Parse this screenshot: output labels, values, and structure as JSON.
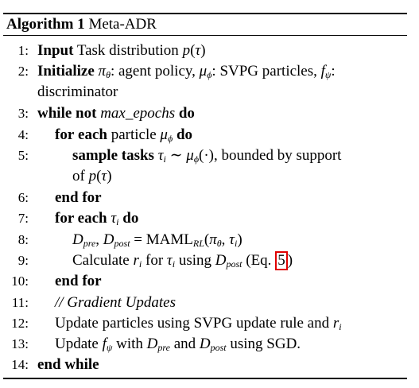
{
  "algorithm": {
    "title_label": "Algorithm 1",
    "title_name": "Meta-ADR",
    "lines": [
      {
        "num": "1:",
        "parts": [
          {
            "t": "Input",
            "s": "b"
          },
          {
            "t": " Task distribution "
          },
          {
            "t": "p",
            "s": "i"
          },
          {
            "t": "("
          },
          {
            "t": "τ",
            "s": "i"
          },
          {
            "t": ")"
          }
        ]
      },
      {
        "num": "2:",
        "parts": [
          {
            "t": "Initialize",
            "s": "b"
          },
          {
            "t": " "
          },
          {
            "t": "π",
            "s": "i"
          },
          {
            "t": "θ",
            "s": "sub"
          },
          {
            "t": ": agent policy, "
          },
          {
            "t": "μ",
            "s": "i"
          },
          {
            "t": "ϕ",
            "s": "sub"
          },
          {
            "t": ": SVPG particles, "
          },
          {
            "t": "f",
            "s": "i"
          },
          {
            "t": "ψ",
            "s": "sub"
          },
          {
            "t": ":"
          }
        ]
      },
      {
        "num": "",
        "parts": [
          {
            "t": "discriminator"
          }
        ]
      },
      {
        "num": "3:",
        "parts": [
          {
            "t": "while",
            "s": "b"
          },
          {
            "t": "  "
          },
          {
            "t": "not",
            "s": "b"
          },
          {
            "t": " "
          },
          {
            "t": "max_epochs",
            "s": "i"
          },
          {
            "t": " "
          },
          {
            "t": "do",
            "s": "b"
          }
        ]
      },
      {
        "num": "4:",
        "parts": [
          {
            "t": "for",
            "s": "b"
          },
          {
            "t": "  "
          },
          {
            "t": "each",
            "s": "b"
          },
          {
            "t": " particle "
          },
          {
            "t": "μ",
            "s": "i"
          },
          {
            "t": "ϕ",
            "s": "sub"
          },
          {
            "t": " "
          },
          {
            "t": "do",
            "s": "b"
          }
        ]
      },
      {
        "num": "5:",
        "parts": [
          {
            "t": "sample tasks",
            "s": "b"
          },
          {
            "t": " "
          },
          {
            "t": "τ",
            "s": "i"
          },
          {
            "t": "i",
            "s": "sub"
          },
          {
            "t": " ∼ "
          },
          {
            "t": "μ",
            "s": "i"
          },
          {
            "t": "ϕ",
            "s": "sub"
          },
          {
            "t": "(·), bounded by support"
          }
        ]
      },
      {
        "num": "",
        "parts": [
          {
            "t": "of "
          },
          {
            "t": "p",
            "s": "i"
          },
          {
            "t": "("
          },
          {
            "t": "τ",
            "s": "i"
          },
          {
            "t": ")"
          }
        ]
      },
      {
        "num": "6:",
        "parts": [
          {
            "t": "end for",
            "s": "b"
          }
        ]
      },
      {
        "num": "7:",
        "parts": [
          {
            "t": "for each",
            "s": "b"
          },
          {
            "t": " "
          },
          {
            "t": "τ",
            "s": "i"
          },
          {
            "t": "i",
            "s": "sub"
          },
          {
            "t": " "
          },
          {
            "t": "do",
            "s": "b"
          }
        ]
      },
      {
        "num": "8:",
        "parts": [
          {
            "t": "D",
            "s": "i"
          },
          {
            "t": "pre",
            "s": "sub"
          },
          {
            "t": ", "
          },
          {
            "t": "D",
            "s": "i"
          },
          {
            "t": "post",
            "s": "sub"
          },
          {
            "t": " = MAML"
          },
          {
            "t": "RL",
            "s": "sub"
          },
          {
            "t": "("
          },
          {
            "t": "π",
            "s": "i"
          },
          {
            "t": "θ",
            "s": "sub"
          },
          {
            "t": ", "
          },
          {
            "t": "τ",
            "s": "i"
          },
          {
            "t": "i",
            "s": "sub"
          },
          {
            "t": ")"
          }
        ]
      },
      {
        "num": "9:",
        "parts": [
          {
            "t": "Calculate "
          },
          {
            "t": "r",
            "s": "i"
          },
          {
            "t": "i",
            "s": "sub"
          },
          {
            "t": " for "
          },
          {
            "t": "τ",
            "s": "i"
          },
          {
            "t": "i",
            "s": "sub"
          },
          {
            "t": " using "
          },
          {
            "t": "D",
            "s": "i"
          },
          {
            "t": "post",
            "s": "sub"
          },
          {
            "t": " (Eq. "
          },
          {
            "t": "5",
            "s": "box"
          },
          {
            "t": ")"
          }
        ]
      },
      {
        "num": "10:",
        "parts": [
          {
            "t": "end for",
            "s": "b"
          }
        ]
      },
      {
        "num": "11:",
        "parts": [
          {
            "t": "// Gradient Updates",
            "s": "i"
          }
        ]
      },
      {
        "num": "12:",
        "parts": [
          {
            "t": "Update particles using SVPG update rule and "
          },
          {
            "t": "r",
            "s": "i"
          },
          {
            "t": "i",
            "s": "sub"
          }
        ]
      },
      {
        "num": "13:",
        "parts": [
          {
            "t": "Update "
          },
          {
            "t": "f",
            "s": "i"
          },
          {
            "t": "ψ",
            "s": "sub"
          },
          {
            "t": " with "
          },
          {
            "t": "D",
            "s": "i"
          },
          {
            "t": "pre",
            "s": "sub"
          },
          {
            "t": " and "
          },
          {
            "t": "D",
            "s": "i"
          },
          {
            "t": "post",
            "s": "sub"
          },
          {
            "t": " using SGD."
          }
        ]
      },
      {
        "num": "14:",
        "parts": [
          {
            "t": "end while",
            "s": "b"
          }
        ]
      }
    ],
    "colors": {
      "text": "#000000",
      "reference_box": "#e00000",
      "background": "#ffffff"
    }
  }
}
